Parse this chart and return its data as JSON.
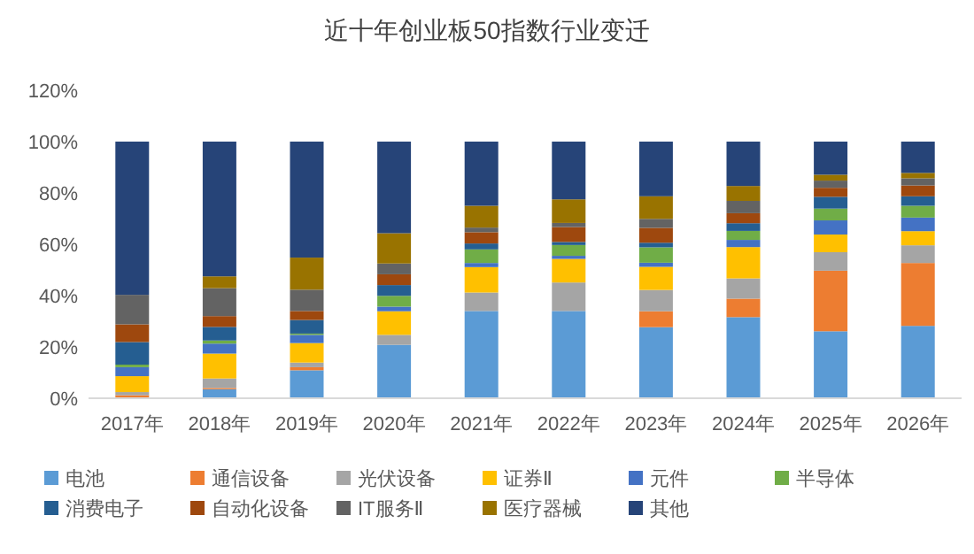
{
  "chart_data": {
    "type": "bar",
    "stacked": true,
    "title": "近十年创业板50指数行业变迁",
    "categories": [
      "2017年",
      "2018年",
      "2019年",
      "2020年",
      "2021年",
      "2022年",
      "2023年",
      "2024年",
      "2025年",
      "2026年"
    ],
    "ylim": [
      0,
      120
    ],
    "yticks": [
      {
        "value": 0,
        "label": "0%"
      },
      {
        "value": 20,
        "label": "20%"
      },
      {
        "value": 40,
        "label": "40%"
      },
      {
        "value": 60,
        "label": "60%"
      },
      {
        "value": 80,
        "label": "80%"
      },
      {
        "value": 100,
        "label": "100%"
      },
      {
        "value": 120,
        "label": "120%"
      }
    ],
    "grid": false,
    "legend": "bottom",
    "series": [
      {
        "name": "电池",
        "color": "#5b9bd5",
        "values": [
          0,
          3.5,
          10.9,
          20.8,
          34,
          34,
          27.7,
          31.6,
          26.1,
          28.2
        ]
      },
      {
        "name": "通信设备",
        "color": "#ed7d31",
        "values": [
          1.2,
          0.5,
          1.2,
          0,
          0,
          0,
          6.2,
          7.2,
          23.6,
          24.5
        ]
      },
      {
        "name": "光伏设备",
        "color": "#a5a5a5",
        "values": [
          1.2,
          3.7,
          1.8,
          3.9,
          7.2,
          11.1,
          8.3,
          7.9,
          7.2,
          6.9
        ]
      },
      {
        "name": "证券Ⅱ",
        "color": "#ffc000",
        "values": [
          6.2,
          9.7,
          7.6,
          9.2,
          9.9,
          9.2,
          9,
          12.2,
          6.9,
          5.5
        ]
      },
      {
        "name": "元件",
        "color": "#4472c4",
        "values": [
          3.5,
          3.9,
          3.2,
          1.8,
          1.6,
          1.2,
          1.6,
          2.8,
          5.5,
          5.3
        ]
      },
      {
        "name": "半导体",
        "color": "#70ad47",
        "values": [
          1,
          1.2,
          0.5,
          4.2,
          5.3,
          4.2,
          6,
          3.5,
          4.6,
          4.6
        ]
      },
      {
        "name": "消费电子",
        "color": "#255e91",
        "values": [
          8.8,
          5.3,
          5.3,
          4.2,
          2.3,
          1.2,
          1.8,
          3,
          4.6,
          3.7
        ]
      },
      {
        "name": "自动化设备",
        "color": "#9e480e",
        "values": [
          6.9,
          4.2,
          3.5,
          4.2,
          4.4,
          5.8,
          5.8,
          3.9,
          3.5,
          4.2
        ]
      },
      {
        "name": "IT服务Ⅱ",
        "color": "#636363",
        "values": [
          11.5,
          10.9,
          8.3,
          4.2,
          1.8,
          1.6,
          3.5,
          4.8,
          2.8,
          2.8
        ]
      },
      {
        "name": "医疗器械",
        "color": "#997300",
        "values": [
          0,
          4.6,
          12.5,
          11.8,
          8.5,
          9.2,
          8.8,
          5.8,
          2.3,
          2.1
        ]
      },
      {
        "name": "其他",
        "color": "#264478",
        "values": [
          59.7,
          52.5,
          45.2,
          35.7,
          25,
          22.5,
          21.3,
          17.3,
          12.9,
          12.2
        ]
      }
    ]
  }
}
